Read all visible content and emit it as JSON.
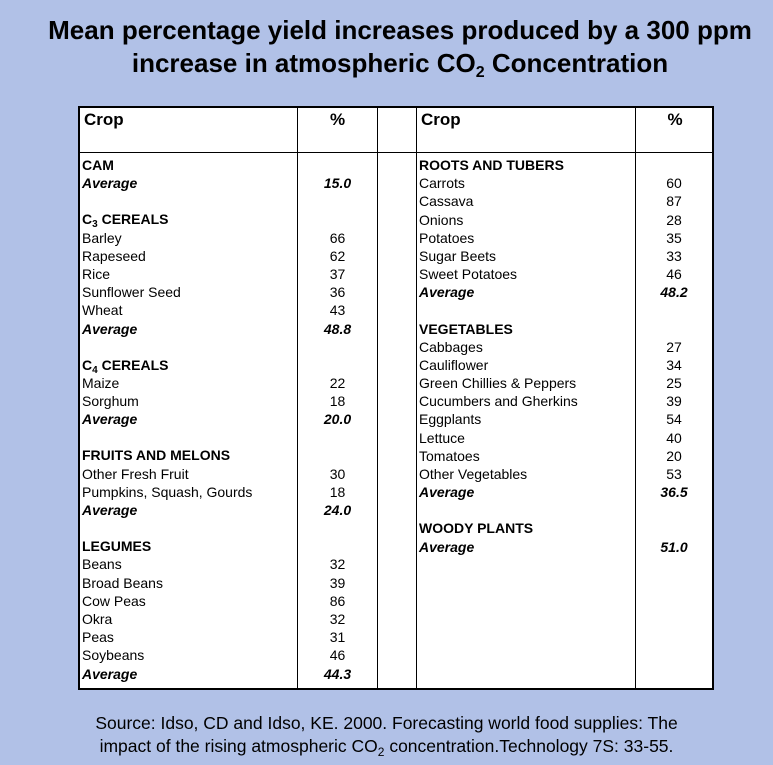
{
  "title": {
    "line1": "Mean percentage yield increases produced by a 300 ppm",
    "line2_pre": "increase in atmospheric CO",
    "line2_sub": "2",
    "line2_post": " Concentration"
  },
  "table": {
    "header_crop": "Crop",
    "header_pct": "%",
    "left_column": [
      {
        "kind": "head",
        "label": "CAM",
        "value": ""
      },
      {
        "kind": "avg",
        "label": "Average",
        "value": "15.0"
      },
      {
        "kind": "blank",
        "label": "",
        "value": ""
      },
      {
        "kind": "head",
        "label_pre": "C",
        "label_sub": "3",
        "label": " CEREALS",
        "value": ""
      },
      {
        "kind": "item",
        "label": "Barley",
        "value": "66"
      },
      {
        "kind": "item",
        "label": "Rapeseed",
        "value": "62"
      },
      {
        "kind": "item",
        "label": "Rice",
        "value": "37"
      },
      {
        "kind": "item",
        "label": "Sunflower Seed",
        "value": "36"
      },
      {
        "kind": "item",
        "label": "Wheat",
        "value": "43"
      },
      {
        "kind": "avg",
        "label": "Average",
        "value": "48.8"
      },
      {
        "kind": "blank",
        "label": "",
        "value": ""
      },
      {
        "kind": "head",
        "label_pre": "C",
        "label_sub": "4",
        "label": " CEREALS",
        "value": ""
      },
      {
        "kind": "item",
        "label": "Maize",
        "value": "22"
      },
      {
        "kind": "item",
        "label": "Sorghum",
        "value": "18"
      },
      {
        "kind": "avg",
        "label": "Average",
        "value": "20.0"
      },
      {
        "kind": "blank",
        "label": "",
        "value": ""
      },
      {
        "kind": "head",
        "label": "FRUITS AND MELONS",
        "value": ""
      },
      {
        "kind": "item",
        "label": "Other Fresh Fruit",
        "value": "30"
      },
      {
        "kind": "item",
        "label": "Pumpkins, Squash, Gourds",
        "value": "18"
      },
      {
        "kind": "avg",
        "label": "Average",
        "value": "24.0"
      },
      {
        "kind": "blank",
        "label": "",
        "value": ""
      },
      {
        "kind": "head",
        "label": "LEGUMES",
        "value": ""
      },
      {
        "kind": "item",
        "label": "Beans",
        "value": "32"
      },
      {
        "kind": "item",
        "label": "Broad Beans",
        "value": "39"
      },
      {
        "kind": "item",
        "label": "Cow Peas",
        "value": "86"
      },
      {
        "kind": "item",
        "label": "Okra",
        "value": "32"
      },
      {
        "kind": "item",
        "label": "Peas",
        "value": "31"
      },
      {
        "kind": "item",
        "label": "Soybeans",
        "value": "46"
      },
      {
        "kind": "avg",
        "label": "Average",
        "value": "44.3"
      }
    ],
    "right_column": [
      {
        "kind": "head",
        "label": "ROOTS AND TUBERS",
        "value": ""
      },
      {
        "kind": "item",
        "label": "Carrots",
        "value": "60"
      },
      {
        "kind": "item",
        "label": "Cassava",
        "value": "87"
      },
      {
        "kind": "item",
        "label": "Onions",
        "value": "28"
      },
      {
        "kind": "item",
        "label": "Potatoes",
        "value": "35"
      },
      {
        "kind": "item",
        "label": "Sugar Beets",
        "value": "33"
      },
      {
        "kind": "item",
        "label": "Sweet Potatoes",
        "value": "46"
      },
      {
        "kind": "avg",
        "label": "Average",
        "value": "48.2"
      },
      {
        "kind": "blank",
        "label": "",
        "value": ""
      },
      {
        "kind": "head",
        "label": "VEGETABLES",
        "value": ""
      },
      {
        "kind": "item",
        "label": "Cabbages",
        "value": "27"
      },
      {
        "kind": "item",
        "label": "Cauliflower",
        "value": "34"
      },
      {
        "kind": "item",
        "label": "Green Chillies & Peppers",
        "value": "25"
      },
      {
        "kind": "item",
        "label": "Cucumbers and Gherkins",
        "value": "39"
      },
      {
        "kind": "item",
        "label": "Eggplants",
        "value": "54"
      },
      {
        "kind": "item",
        "label": "Lettuce",
        "value": "40"
      },
      {
        "kind": "item",
        "label": "Tomatoes",
        "value": "20"
      },
      {
        "kind": "item",
        "label": "Other Vegetables",
        "value": "53"
      },
      {
        "kind": "avg",
        "label": "Average",
        "value": "36.5"
      },
      {
        "kind": "blank",
        "label": "",
        "value": ""
      },
      {
        "kind": "head",
        "label": "WOODY PLANTS",
        "value": ""
      },
      {
        "kind": "avg",
        "label": "Average",
        "value": "51.0"
      }
    ]
  },
  "source": {
    "line1": "Source: Idso, CD and Idso, KE. 2000. Forecasting world food supplies: The",
    "line2_pre": "impact of the rising atmospheric CO",
    "line2_sub": "2",
    "line2_post": " concentration.Technology 7S: 33-55."
  },
  "colors": {
    "background": "#b1c1e7",
    "table_background": "#ffffff",
    "border": "#000000"
  }
}
